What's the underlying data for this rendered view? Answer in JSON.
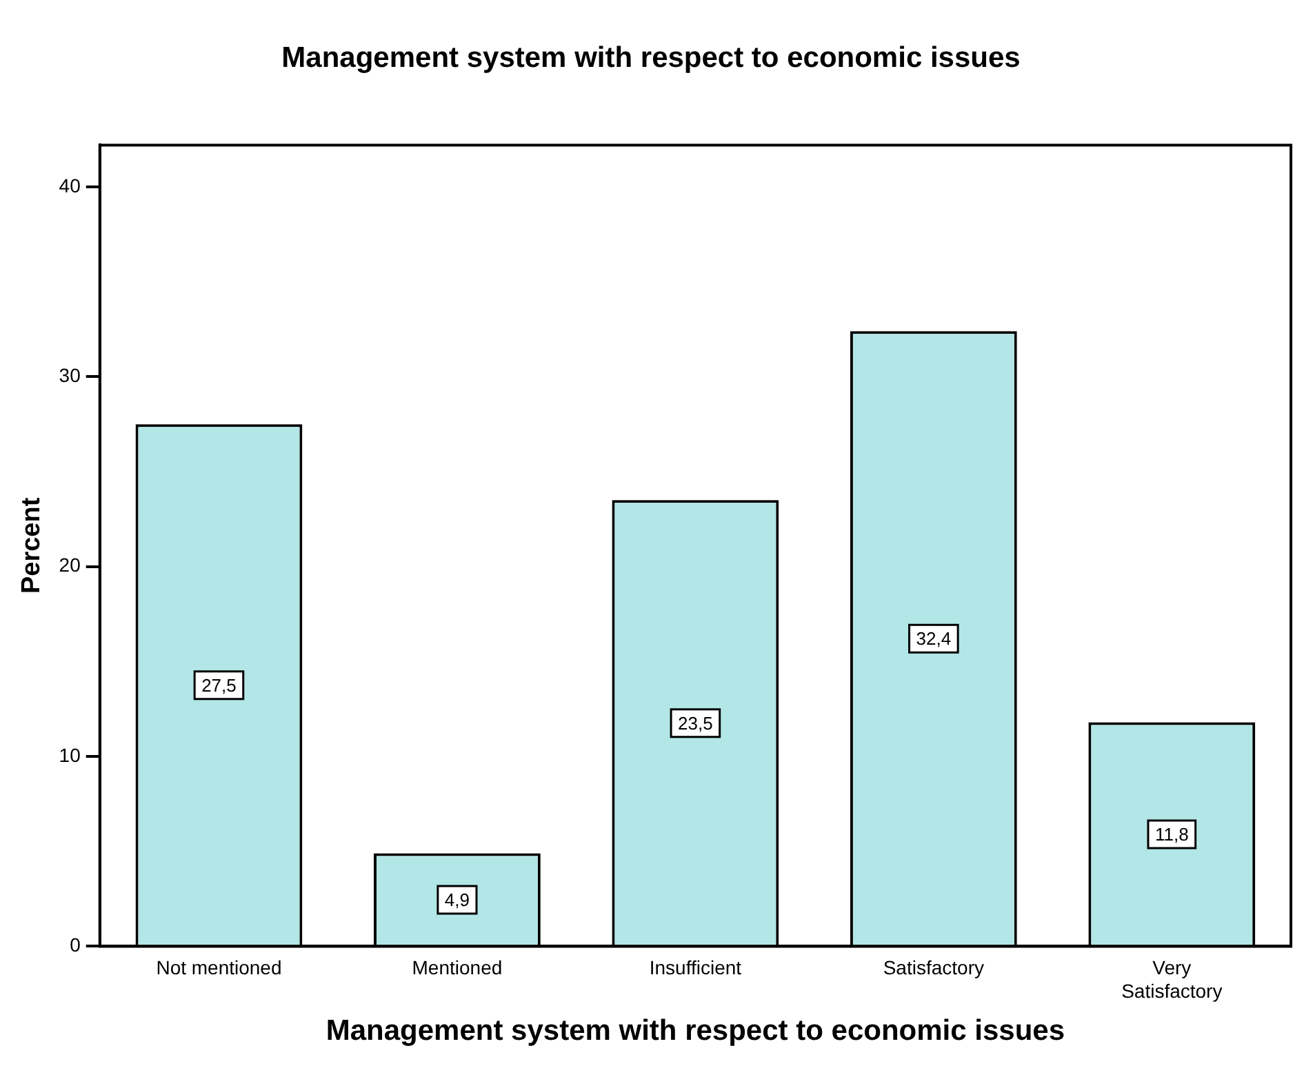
{
  "chart_data": {
    "type": "bar",
    "title": "Management system with respect to economic issues",
    "xlabel": "Management system with respect to economic issues",
    "ylabel": "Percent",
    "categories": [
      "Not mentioned",
      "Mentioned",
      "Insufficient",
      "Satisfactory",
      "Very Satisfactory"
    ],
    "values": [
      27.5,
      4.9,
      23.5,
      32.4,
      11.8
    ],
    "value_labels": [
      "27,5",
      "4,9",
      "23,5",
      "32,4",
      "11,8"
    ],
    "color": "#b3e6e6",
    "ylim": [
      0,
      42.2
    ],
    "yticks": [
      0,
      10,
      20,
      30,
      40
    ],
    "grid": false,
    "legend": false
  }
}
